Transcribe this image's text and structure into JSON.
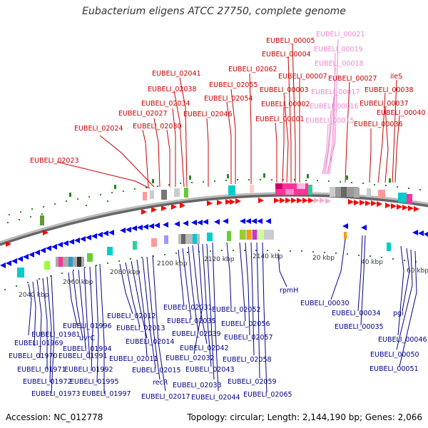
{
  "title": "Eubacterium eligens ATCC 27750, complete genome",
  "footer": {
    "accession": "Accession: NC_012778",
    "summary": "Topology: circular; Length: 2,144,190 bp; Genes: 2,066"
  },
  "colors": {
    "forward_gene": "#ff0000",
    "reverse_gene": "#0000ff",
    "forward_label": "#cc0000",
    "reverse_label": "#00008b",
    "highlight_label": "#ee88cc",
    "ring": "#888888",
    "tick": "#228b22"
  },
  "scale_labels": [
    "2040 kbp",
    "2060 kbp",
    "2080 kbp",
    "2100 kbp",
    "2120 kbp",
    "2140 kbp",
    "20 kbp",
    "40 kbp",
    "60 kbp"
  ],
  "labels_top": [
    "EUBELI_00005",
    "EUBELI_00004",
    "EUBELI_02062",
    "EUBELI_00007",
    "EUBELI_02041",
    "EUBELI_02055",
    "EUBELI_00003",
    "EUBELI_02038",
    "EUBELI_02054",
    "EUBELI_00002",
    "EUBELI_02034",
    "EUBELI_02027",
    "EUBELI_02046",
    "EUBELI_00001",
    "EUBELI_02030",
    "EUBELI_02024",
    "EUBELI_02023",
    "EUBELI_00027",
    "EUBELI_00038",
    "EUBELI_00037",
    "EUBELI_00040",
    "EUBELI_00036",
    "ileS"
  ],
  "labels_top_highlight": [
    "EUBELI_00021",
    "EUBELI_00019",
    "EUBELI_00018",
    "EUBELI_00017",
    "EUBELI_00016",
    "EUBELI_00015"
  ],
  "labels_bottom": [
    "EUBELI_02012",
    "EUBELI_02013",
    "EUBELI_01996",
    "EUBELI_01981",
    "EUBELI_01969",
    "uvrC",
    "EUBELI_01994",
    "EUBELI_01970",
    "EUBELI_01991",
    "EUBELI_01971",
    "EUBELI_01992",
    "EUBELI_01972",
    "EUBELI_01995",
    "EUBELI_01973",
    "EUBELI_01997",
    "EUBELI_02014",
    "EUBELI_02011",
    "EUBELI_02015",
    "recR",
    "EUBELI_02017",
    "EUBELI_02031",
    "EUBELI_02035",
    "EUBELI_02039",
    "EUBELI_02042",
    "EUBELI_02032",
    "EUBELI_02043",
    "EUBELI_02033",
    "EUBELI_02044",
    "EUBELI_02052",
    "EUBELI_02056",
    "EUBELI_02057",
    "EUBELI_02058",
    "EUBELI_02059",
    "EUBELI_02065",
    "rpmH",
    "EUBELI_00030",
    "EUBELI_00034",
    "EUBELI_00035",
    "pgi",
    "EUBELI_00046",
    "EUBELI_00050",
    "EUBELI_00051"
  ]
}
